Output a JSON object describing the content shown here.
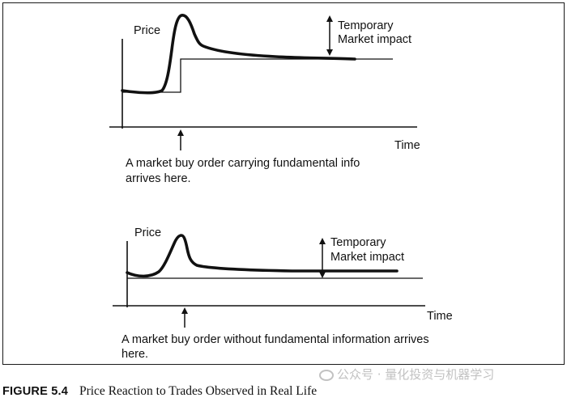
{
  "figure": {
    "number": "FIGURE 5.4",
    "title": "Price Reaction to Trades Observed in Real Life"
  },
  "top_panel": {
    "y_axis_label": "Price",
    "x_axis_label": "Time",
    "impact_label_line1": "Temporary",
    "impact_label_line2": "Market impact",
    "note_line1": "A market buy order carrying fundamental info",
    "note_line2": "arrives here."
  },
  "bottom_panel": {
    "y_axis_label": "Price",
    "x_axis_label": "Time",
    "impact_label_line1": "Temporary",
    "impact_label_line2": "Market impact",
    "note_line1": "A market buy order without fundamental information arrives",
    "note_line2": "here."
  },
  "watermark": {
    "text": "公众号 · 量化投资与机器学习"
  },
  "colors": {
    "ink": "#111111",
    "watermark": "#c2c2c2"
  }
}
